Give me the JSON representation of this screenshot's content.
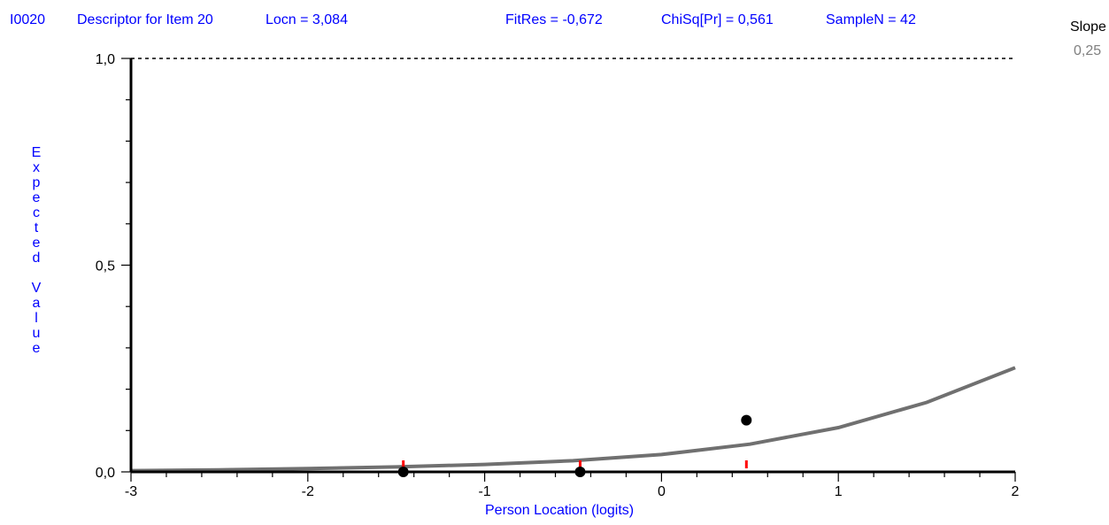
{
  "header": {
    "item": "I0020",
    "descriptor": "Descriptor for Item 20",
    "locn": "Locn = 3,084",
    "fitres": "FitRes = -0,672",
    "chisq": "ChiSq[Pr] = 0,561",
    "samplen": "SampleN = 42"
  },
  "slope": {
    "label": "Slope",
    "value": "0,25"
  },
  "chart_data": {
    "type": "line",
    "title": "",
    "xlabel": "Person Location (logits)",
    "ylabel": "Expected Value",
    "xlim": [
      -3,
      2
    ],
    "ylim": [
      0,
      1
    ],
    "x_ticks": [
      -3,
      -2,
      -1,
      0,
      1,
      2
    ],
    "x_tick_labels": [
      "-3",
      "-2",
      "-1",
      "0",
      "1",
      "2"
    ],
    "y_ticks": [
      0,
      0.5,
      1
    ],
    "y_tick_labels": [
      "0,0",
      "0,5",
      "1,0"
    ],
    "reference_line": {
      "y": 1.0,
      "style": "dashed"
    },
    "series": [
      {
        "kind": "expected-curve",
        "color": "#707070",
        "x": [
          -3.0,
          -2.5,
          -2.0,
          -1.5,
          -1.0,
          -0.5,
          0.0,
          0.5,
          1.0,
          1.5,
          2.0
        ],
        "y": [
          0.003,
          0.005,
          0.008,
          0.012,
          0.018,
          0.027,
          0.042,
          0.067,
          0.107,
          0.168,
          0.252
        ]
      },
      {
        "kind": "observed-class-means",
        "color": "#000000",
        "x": [
          -1.46,
          -0.46,
          0.48
        ],
        "y": [
          0.0,
          0.0,
          0.125
        ]
      }
    ],
    "class_intervals": {
      "color": "#ff0000",
      "x": [
        -1.46,
        -0.46,
        0.48
      ]
    }
  }
}
